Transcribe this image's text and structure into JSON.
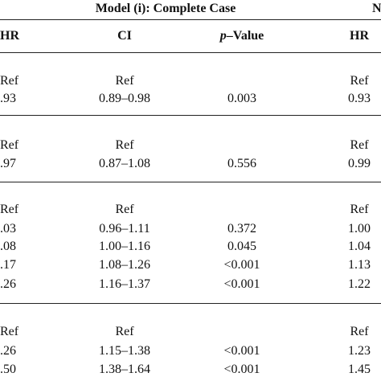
{
  "header": {
    "group_title": "Model (i): Complete Case",
    "right_edge_char": "N",
    "col_hr_left": "HR",
    "col_ci": "CI",
    "col_p_prefix": "p",
    "col_p_suffix": "–Value",
    "col_hr_right": "HR"
  },
  "rows": [
    {
      "hr": "Ref",
      "ci": "Ref",
      "p": "",
      "hr2": "Ref"
    },
    {
      "hr": ".93",
      "ci": "0.89–0.98",
      "p": "0.003",
      "hr2": "0.93"
    },
    {
      "hr": "Ref",
      "ci": "Ref",
      "p": "",
      "hr2": "Ref"
    },
    {
      "hr": ".97",
      "ci": "0.87–1.08",
      "p": "0.556",
      "hr2": "0.99"
    },
    {
      "hr": "Ref",
      "ci": "Ref",
      "p": "",
      "hr2": "Ref"
    },
    {
      "hr": ".03",
      "ci": "0.96–1.11",
      "p": "0.372",
      "hr2": "1.00"
    },
    {
      "hr": ".08",
      "ci": "1.00–1.16",
      "p": "0.045",
      "hr2": "1.04"
    },
    {
      "hr": ".17",
      "ci": "1.08–1.26",
      "p": "<0.001",
      "hr2": "1.13"
    },
    {
      "hr": ".26",
      "ci": "1.16–1.37",
      "p": "<0.001",
      "hr2": "1.22"
    },
    {
      "hr": "Ref",
      "ci": "Ref",
      "p": "",
      "hr2": "Ref"
    },
    {
      "hr": ".26",
      "ci": "1.15–1.38",
      "p": "<0.001",
      "hr2": "1.23"
    },
    {
      "hr": ".50",
      "ci": "1.38–1.64",
      "p": "<0.001",
      "hr2": "1.45"
    }
  ]
}
